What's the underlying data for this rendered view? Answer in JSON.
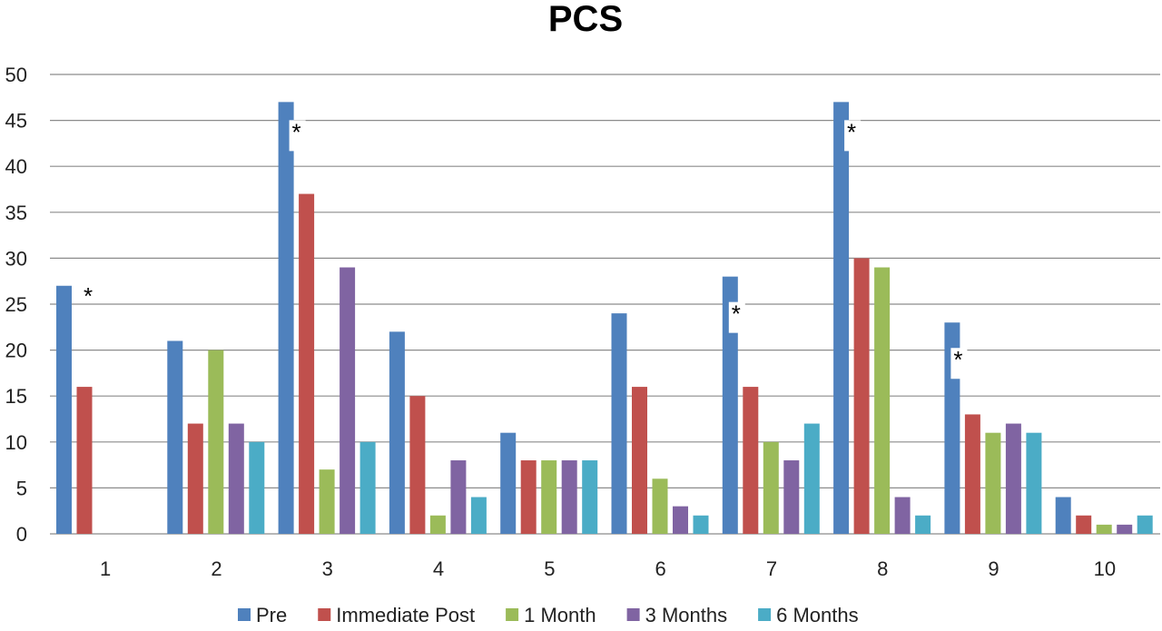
{
  "chart_data": {
    "type": "bar",
    "title": "PCS",
    "xlabel": "",
    "ylabel": "",
    "ylim": [
      0,
      50
    ],
    "yticks": [
      0,
      5,
      10,
      15,
      20,
      25,
      30,
      35,
      40,
      45,
      50
    ],
    "grid": true,
    "legend_position": "bottom",
    "categories": [
      "1",
      "2",
      "3",
      "4",
      "5",
      "6",
      "7",
      "8",
      "9",
      "10"
    ],
    "series": [
      {
        "name": "Pre",
        "color": "#4F81BD",
        "values": [
          27,
          21,
          47,
          22,
          11,
          24,
          28,
          47,
          23,
          4
        ]
      },
      {
        "name": "Immediate Post",
        "color": "#C0504D",
        "values": [
          16,
          12,
          37,
          15,
          8,
          16,
          16,
          30,
          13,
          2
        ]
      },
      {
        "name": "1 Month",
        "color": "#9BBB59",
        "values": [
          null,
          20,
          7,
          2,
          8,
          6,
          10,
          29,
          11,
          1
        ]
      },
      {
        "name": "3 Months",
        "color": "#8064A2",
        "values": [
          null,
          12,
          29,
          8,
          8,
          3,
          8,
          4,
          12,
          1
        ]
      },
      {
        "name": "6 Months",
        "color": "#4BACC6",
        "values": [
          null,
          10,
          10,
          4,
          8,
          2,
          12,
          2,
          11,
          2
        ]
      }
    ],
    "annotations": [
      {
        "text": "*",
        "category": "1"
      },
      {
        "text": "*",
        "category": "3"
      },
      {
        "text": "*",
        "category": "7"
      },
      {
        "text": "*",
        "category": "8"
      },
      {
        "text": "*",
        "category": "9"
      }
    ]
  }
}
